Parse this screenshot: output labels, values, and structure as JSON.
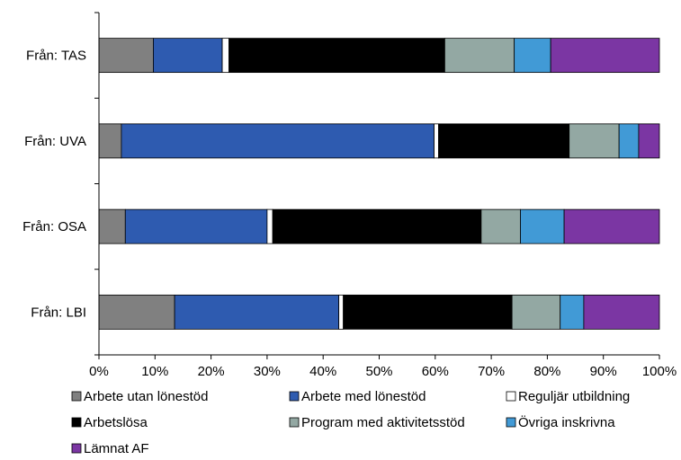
{
  "chart_data": {
    "type": "bar",
    "orientation": "horizontal",
    "stacked": true,
    "percent": true,
    "title": "",
    "xlabel": "",
    "ylabel": "",
    "xlim": [
      0,
      100
    ],
    "grid": false,
    "legend_position": "bottom",
    "x_ticks": [
      "0%",
      "10%",
      "20%",
      "30%",
      "40%",
      "50%",
      "60%",
      "70%",
      "80%",
      "90%",
      "100%"
    ],
    "categories": [
      "Från: TAS",
      "Från: UVA",
      "Från: OSA",
      "Från: LBI"
    ],
    "series": [
      {
        "name": "Arbete utan lönestöd",
        "color": "#808080",
        "values": [
          9.7,
          4.0,
          4.7,
          13.5
        ]
      },
      {
        "name": "Arbete med lönestöd",
        "color": "#2E5BB0",
        "values": [
          12.3,
          55.8,
          25.3,
          29.3
        ]
      },
      {
        "name": "Reguljär utbildning",
        "color": "#FFFFFF",
        "values": [
          1.2,
          0.8,
          1.0,
          0.8
        ]
      },
      {
        "name": "Arbetslösa",
        "color": "#000000",
        "values": [
          38.5,
          23.3,
          37.2,
          30.1
        ]
      },
      {
        "name": "Program med aktivitetsstöd",
        "color": "#93A8A3",
        "values": [
          12.4,
          8.9,
          7.0,
          8.6
        ]
      },
      {
        "name": "Övriga inskrivna",
        "color": "#419AD6",
        "values": [
          6.5,
          3.5,
          7.8,
          4.2
        ]
      },
      {
        "name": "Lämnat AF",
        "color": "#7B36A3",
        "values": [
          19.4,
          3.7,
          17.0,
          13.5
        ]
      }
    ]
  }
}
